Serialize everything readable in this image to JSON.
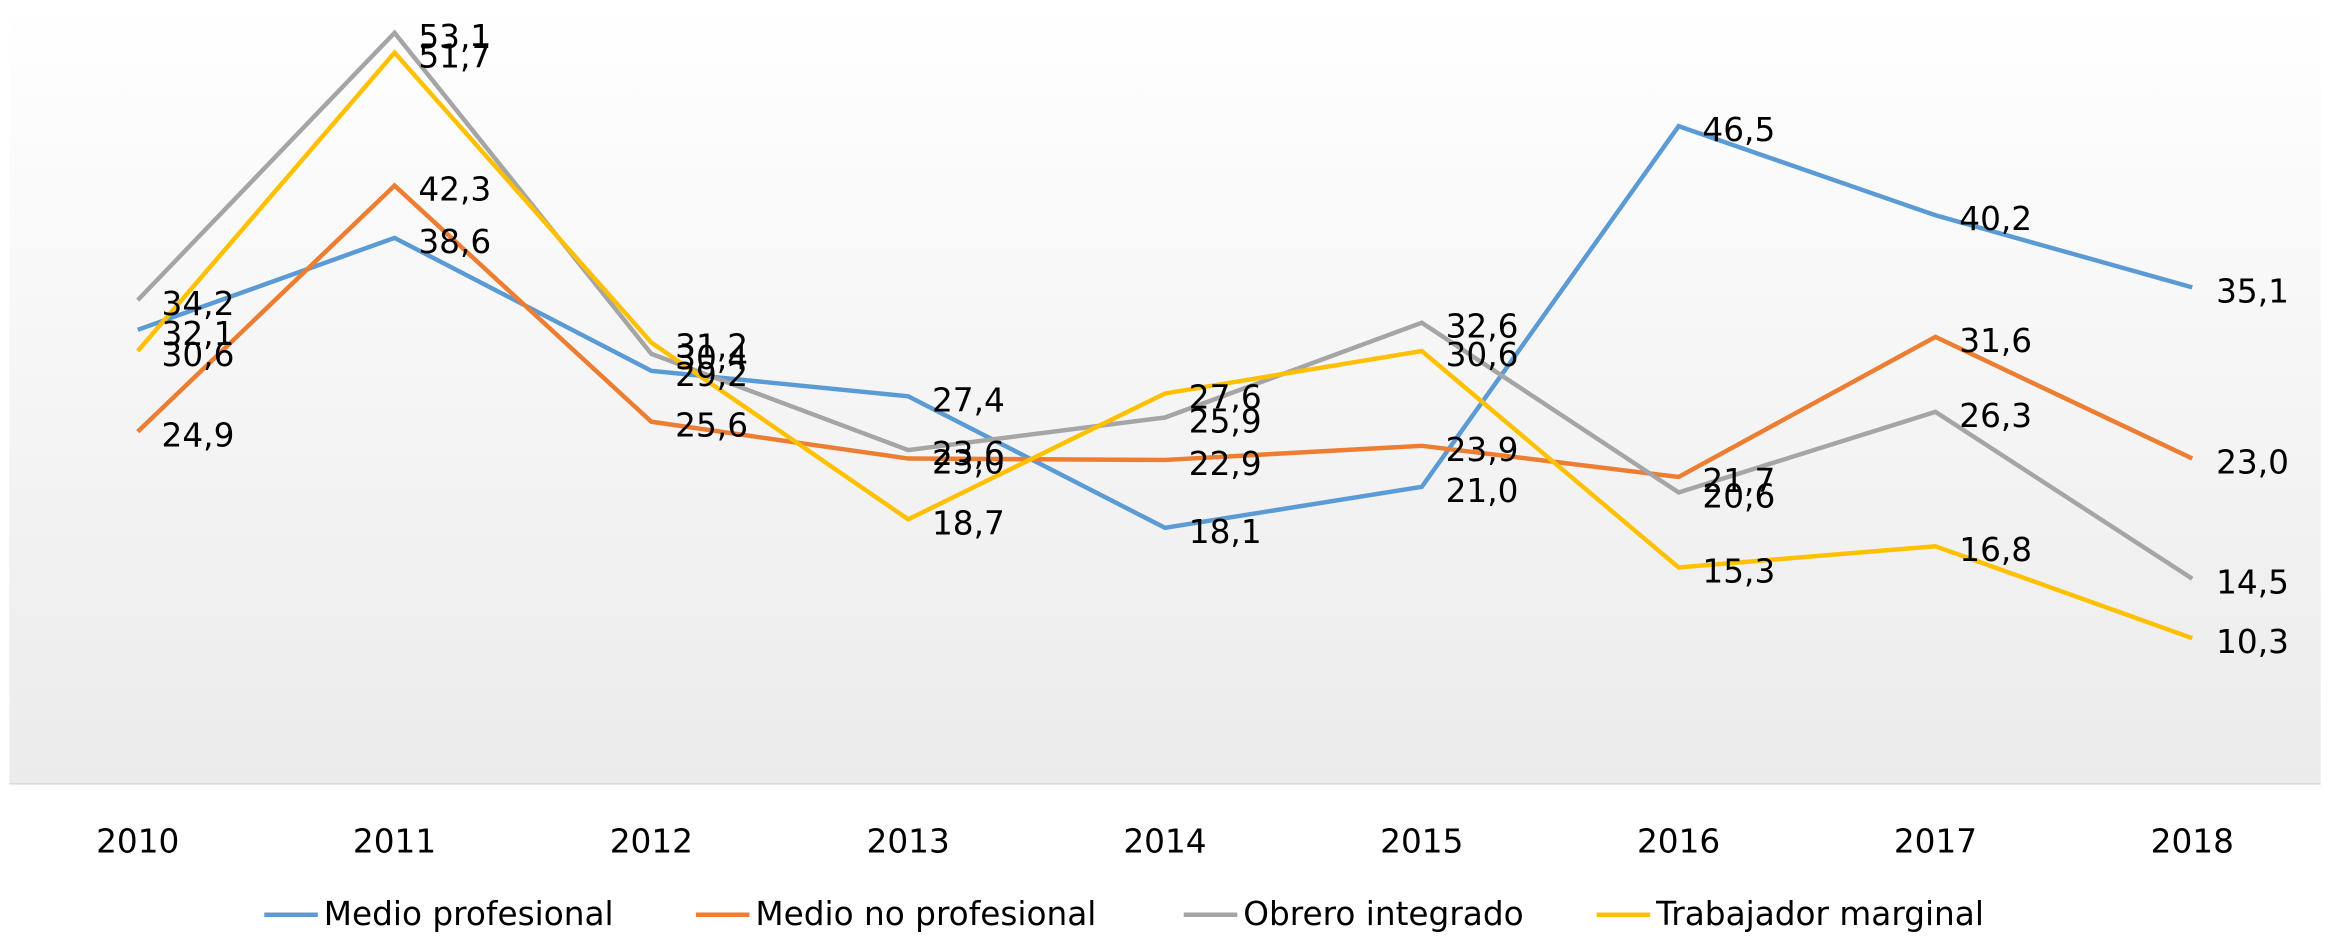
{
  "chart_data": {
    "type": "line",
    "categories": [
      "2010",
      "2011",
      "2012",
      "2013",
      "2014",
      "2015",
      "2016",
      "2017",
      "2018"
    ],
    "series": [
      {
        "name": "Medio profesional",
        "color": "#5b9bd5",
        "values": [
          32.1,
          38.6,
          29.2,
          27.4,
          18.1,
          21.0,
          46.5,
          40.2,
          35.1
        ],
        "value_labels": [
          "32,1",
          "38,6",
          "29,2",
          "27,4",
          "18,1",
          "21,0",
          "46,5",
          "40,2",
          "35,1"
        ]
      },
      {
        "name": "Medio no profesional",
        "color": "#ed7d31",
        "values": [
          24.9,
          42.3,
          25.6,
          23.0,
          22.9,
          23.9,
          21.7,
          31.6,
          23.0
        ],
        "value_labels": [
          "24,9",
          "42,3",
          "25,6",
          "23,0",
          "22,9",
          "23,9",
          "21,7",
          "31,6",
          "23,0"
        ]
      },
      {
        "name": "Obrero integrado",
        "color": "#a5a5a5",
        "values": [
          34.2,
          53.1,
          30.4,
          23.6,
          25.9,
          32.6,
          20.6,
          26.3,
          14.5
        ],
        "value_labels": [
          "34,2",
          "53,1",
          "30,4",
          "23,6",
          "25,9",
          "32,6",
          "20,6",
          "26,3",
          "14,5"
        ]
      },
      {
        "name": "Trabajador marginal",
        "color": "#ffc000",
        "values": [
          30.6,
          51.7,
          31.2,
          18.7,
          27.6,
          30.6,
          15.3,
          16.8,
          10.3
        ],
        "value_labels": [
          "30,6",
          "51,7",
          "31,2",
          "18,7",
          "27,6",
          "30,6",
          "15,3",
          "16,8",
          "10,3"
        ]
      }
    ],
    "ylim": [
      0,
      55
    ],
    "legend": "bottom"
  }
}
